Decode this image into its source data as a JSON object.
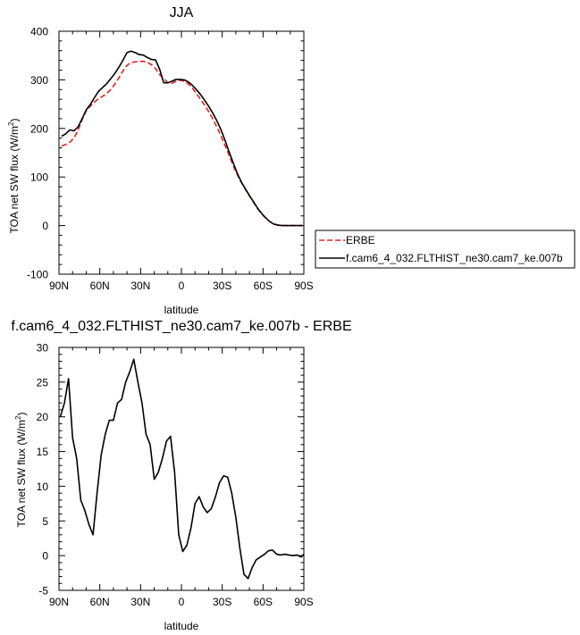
{
  "chart_data": [
    {
      "type": "line",
      "title": "JJA",
      "xlabel": "latitude",
      "ylabel_main": "TOA net SW flux (W/m",
      "ylabel_sup": "2",
      "ylabel_close": ")",
      "xlim": [
        90,
        -90
      ],
      "ylim": [
        -100,
        400
      ],
      "x_ticks": [
        90,
        60,
        30,
        0,
        -30,
        -60,
        -90
      ],
      "x_tick_labels": [
        "90N",
        "60N",
        "30N",
        "0",
        "30S",
        "60S",
        "90S"
      ],
      "y_ticks": [
        -100,
        0,
        100,
        200,
        300,
        400
      ],
      "y_tick_labels": [
        "-100",
        "0",
        "100",
        "200",
        "300",
        "400"
      ],
      "grid": false,
      "legend_position": "right",
      "series": [
        {
          "name": "ERBE",
          "color": "#e8201d",
          "dash": "dashed",
          "x": [
            88,
            85,
            82,
            79,
            76,
            73,
            70,
            67,
            64,
            61,
            58,
            55,
            52,
            49,
            46,
            43,
            40,
            37,
            34,
            31,
            28,
            25,
            22,
            19,
            16,
            13,
            10,
            7,
            4,
            1,
            -2,
            -5,
            -8,
            -11,
            -14,
            -17,
            -20,
            -23,
            -26,
            -29,
            -32,
            -35,
            -38,
            -41,
            -44,
            -47,
            -50,
            -53,
            -56,
            -59,
            -62,
            -65,
            -68,
            -71,
            -74,
            -77,
            -80,
            -83,
            -86,
            -89
          ],
          "y": [
            164,
            167,
            172,
            180,
            196,
            218,
            236,
            246,
            254,
            261,
            266,
            272,
            280,
            291,
            304,
            318,
            330,
            336,
            337,
            338,
            338,
            336,
            331,
            323,
            311,
            303,
            294,
            293,
            297,
            299,
            297,
            292,
            283,
            272,
            260,
            248,
            235,
            220,
            203,
            185,
            165,
            145,
            124,
            105,
            89,
            75,
            61,
            48,
            35,
            24,
            15,
            8,
            4,
            1,
            0,
            0,
            0,
            0,
            0,
            0
          ]
        },
        {
          "name": "f.cam6_4_032.FLTHIST_ne30.cam7_ke.007b",
          "color": "#000000",
          "dash": "solid",
          "x": [
            88,
            85,
            82,
            79,
            76,
            73,
            70,
            67,
            64,
            61,
            58,
            55,
            52,
            49,
            46,
            43,
            40,
            37,
            34,
            31,
            28,
            25,
            22,
            19,
            16,
            13,
            10,
            7,
            4,
            1,
            -2,
            -5,
            -8,
            -11,
            -14,
            -17,
            -20,
            -23,
            -26,
            -29,
            -32,
            -35,
            -38,
            -41,
            -44,
            -47,
            -50,
            -53,
            -56,
            -59,
            -62,
            -65,
            -68,
            -71,
            -74,
            -77,
            -80,
            -83,
            -86,
            -89
          ],
          "y": [
            184,
            189,
            197,
            195,
            203,
            220,
            238,
            249,
            263,
            276,
            284,
            292,
            302,
            313,
            326,
            340,
            356,
            359,
            356,
            352,
            351,
            346,
            342,
            341,
            322,
            294,
            294,
            297,
            301,
            301,
            300,
            296,
            289,
            280,
            270,
            258,
            246,
            232,
            216,
            198,
            176,
            152,
            130,
            108,
            90,
            76,
            62,
            49,
            36,
            25,
            16,
            8,
            3,
            1,
            0,
            0,
            0,
            0,
            0,
            0
          ]
        }
      ]
    },
    {
      "type": "line",
      "title": "f.cam6_4_032.FLTHIST_ne30.cam7_ke.007b - ERBE",
      "xlabel": "latitude",
      "ylabel_main": "TOA net SW flux (W/m",
      "ylabel_sup": "2",
      "ylabel_close": ")",
      "xlim": [
        90,
        -90
      ],
      "ylim": [
        -5,
        30
      ],
      "x_ticks": [
        90,
        60,
        30,
        0,
        -30,
        -60,
        -90
      ],
      "x_tick_labels": [
        "90N",
        "60N",
        "30N",
        "0",
        "30S",
        "60S",
        "90S"
      ],
      "y_ticks": [
        -5,
        0,
        5,
        10,
        15,
        20,
        25,
        30
      ],
      "y_tick_labels": [
        "-5",
        "0",
        "5",
        "10",
        "15",
        "20",
        "25",
        "30"
      ],
      "grid": false,
      "series": [
        {
          "color": "#000000",
          "dash": "solid",
          "x": [
            89,
            86,
            83,
            80,
            77,
            74,
            71,
            68,
            65,
            62,
            59,
            56,
            53,
            50,
            47,
            44,
            41,
            38,
            35,
            32,
            29,
            26,
            23,
            20,
            17,
            14,
            11,
            8,
            5,
            2,
            -1,
            -4,
            -7,
            -10,
            -13,
            -16,
            -19,
            -22,
            -25,
            -28,
            -31,
            -34,
            -37,
            -40,
            -43,
            -46,
            -49,
            -52,
            -55,
            -58,
            -61,
            -64,
            -67,
            -70,
            -73,
            -76,
            -79,
            -82,
            -85,
            -88,
            -90
          ],
          "y": [
            20,
            22,
            25.5,
            17,
            14,
            8,
            6.5,
            4.5,
            3,
            9,
            14.5,
            17.5,
            19.5,
            19.5,
            22,
            22.5,
            25,
            26.5,
            28.3,
            25,
            22,
            17.5,
            16,
            11,
            12,
            14,
            16.5,
            17.2,
            12,
            3,
            0.6,
            1.5,
            4,
            7.5,
            8.5,
            7,
            6.2,
            6.8,
            8.5,
            10.5,
            11.5,
            11.3,
            9,
            5.5,
            1,
            -2.7,
            -3.3,
            -1.7,
            -0.6,
            -0.2,
            0.2,
            0.7,
            0.8,
            0.2,
            0.1,
            0.2,
            0.1,
            0,
            0.1,
            -0.2,
            0.2
          ]
        }
      ]
    }
  ]
}
